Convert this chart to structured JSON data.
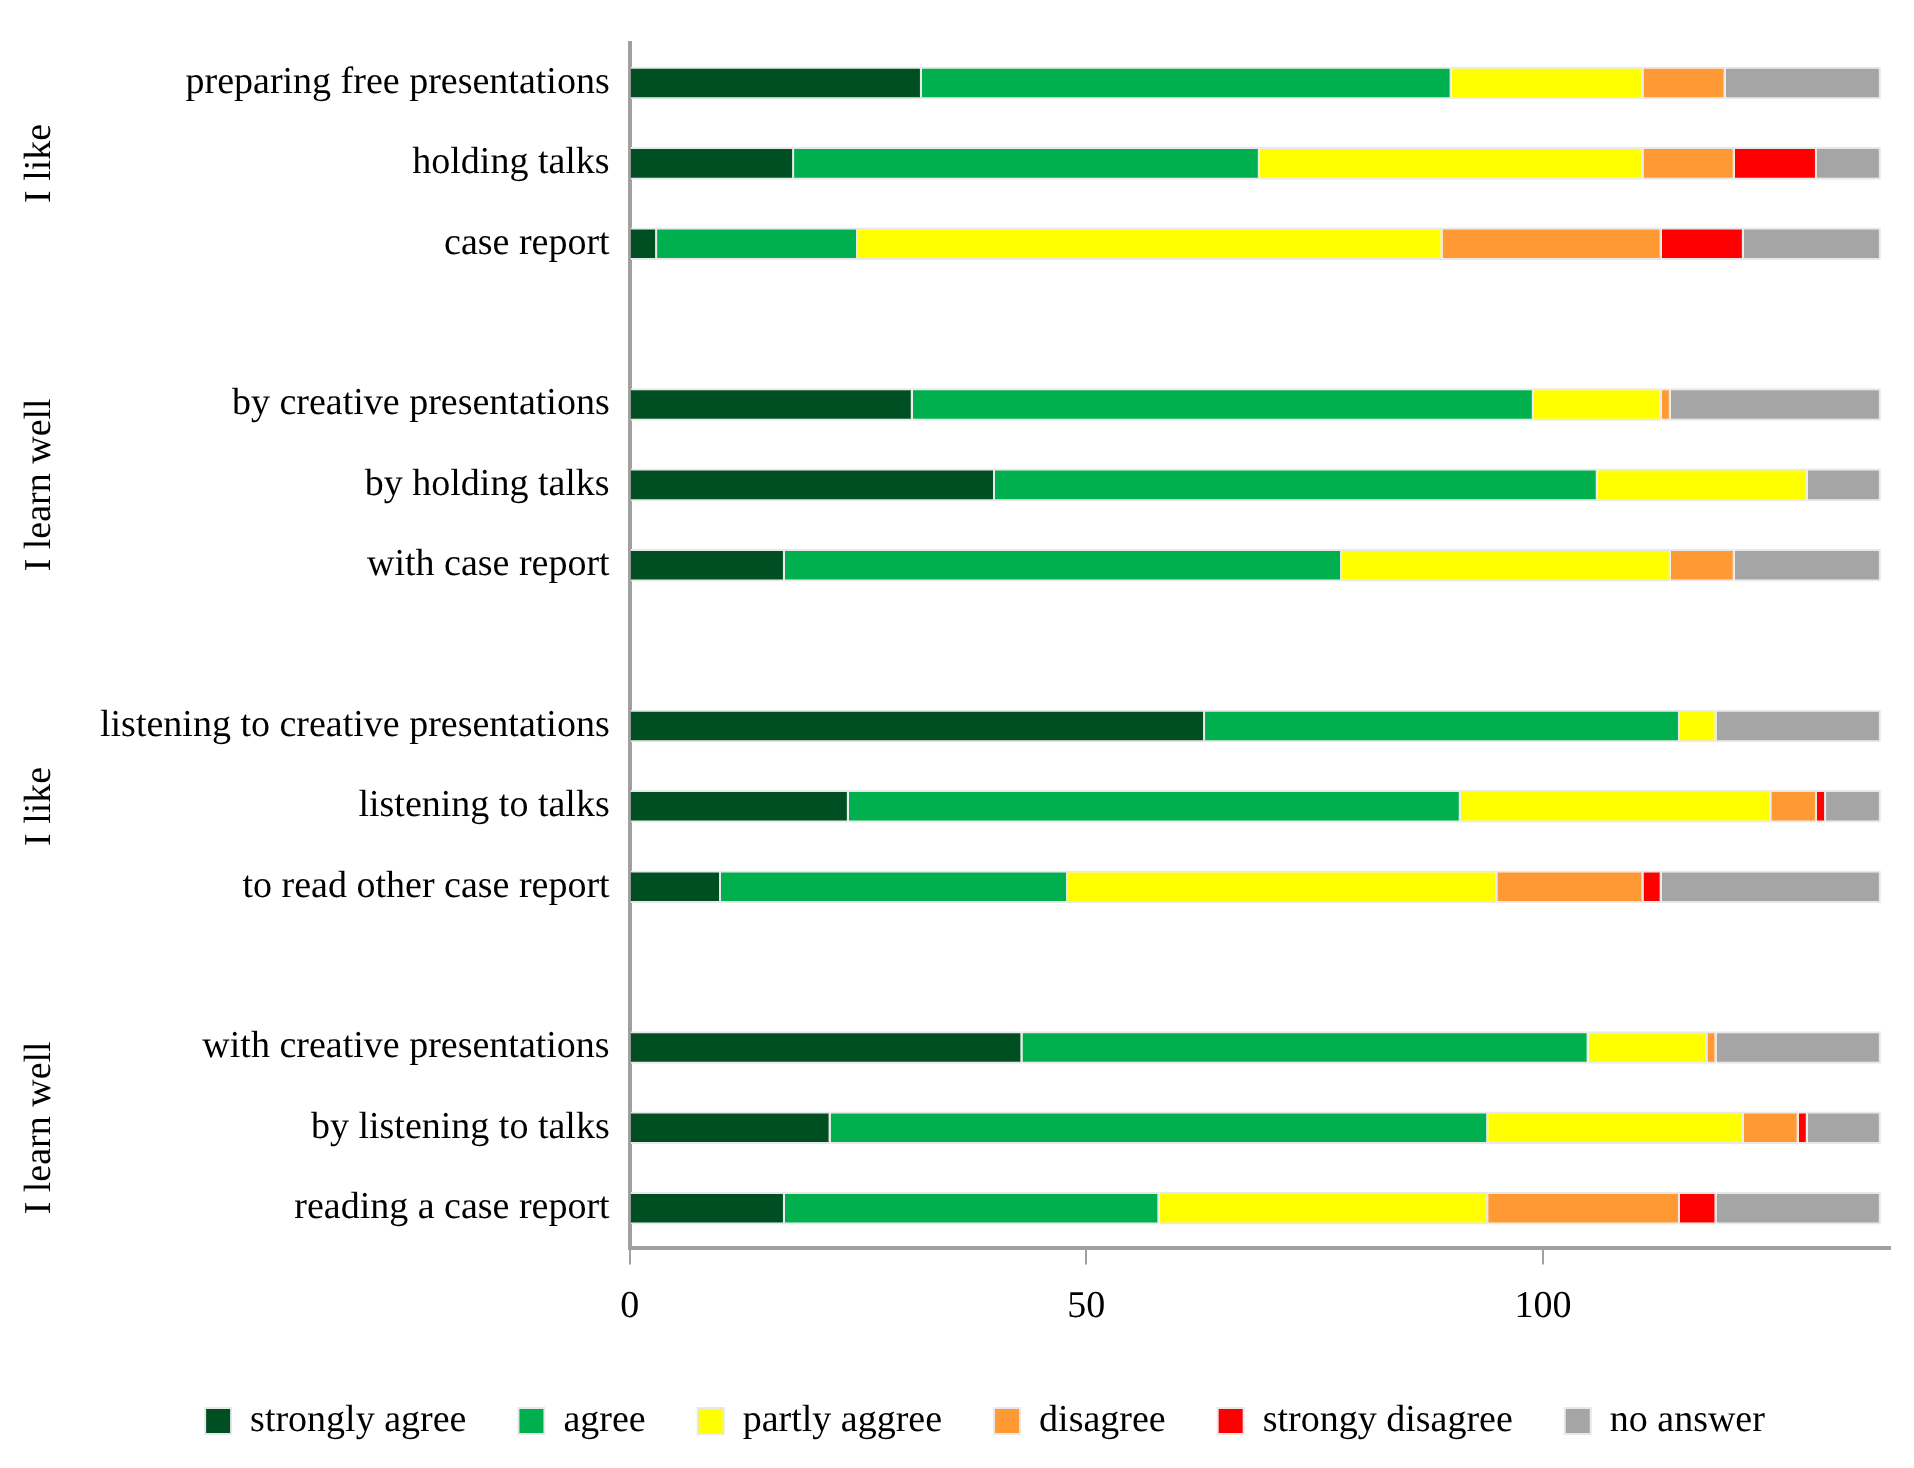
{
  "chart_data": {
    "type": "bar",
    "orientation": "horizontal",
    "stacked": true,
    "categories": [
      "preparing free presentations",
      "holding talks",
      "case report",
      null,
      "by creative presentations",
      "by holding talks",
      "with case report",
      null,
      "listening to creative presentations",
      "listening to talks",
      "to read other case report",
      null,
      "with creative presentations",
      "by listening to talks",
      "reading a case report"
    ],
    "series": [
      {
        "name": "strongly agree",
        "color": "#004f23",
        "values": [
          32,
          18,
          3,
          null,
          31,
          40,
          17,
          null,
          63,
          24,
          10,
          null,
          43,
          22,
          17
        ]
      },
      {
        "name": "agree",
        "color": "#00b04f",
        "values": [
          58,
          51,
          22,
          null,
          68,
          66,
          61,
          null,
          52,
          67,
          38,
          null,
          62,
          72,
          41
        ]
      },
      {
        "name": "partly aggree",
        "color": "#ffff00",
        "values": [
          21,
          42,
          64,
          null,
          14,
          23,
          36,
          null,
          4,
          34,
          47,
          null,
          13,
          28,
          36
        ]
      },
      {
        "name": "disagree",
        "color": "#ff9933",
        "values": [
          9,
          10,
          24,
          null,
          1,
          0,
          7,
          null,
          0,
          5,
          16,
          null,
          1,
          6,
          21
        ]
      },
      {
        "name": "strongy disagree",
        "color": "#ff0000",
        "values": [
          0,
          9,
          9,
          null,
          0,
          0,
          0,
          null,
          0,
          1,
          2,
          null,
          0,
          1,
          4
        ]
      },
      {
        "name": "no answer",
        "color": "#a5a5a5",
        "values": [
          17,
          7,
          15,
          null,
          23,
          8,
          16,
          null,
          18,
          6,
          24,
          null,
          18,
          8,
          18
        ]
      }
    ],
    "xlim": [
      0,
      138
    ],
    "xticks": [
      0,
      50,
      100
    ],
    "grid": false,
    "legend": "bottom",
    "annotations": [
      "I like",
      "I learn well",
      "I like",
      "I learn well"
    ]
  }
}
